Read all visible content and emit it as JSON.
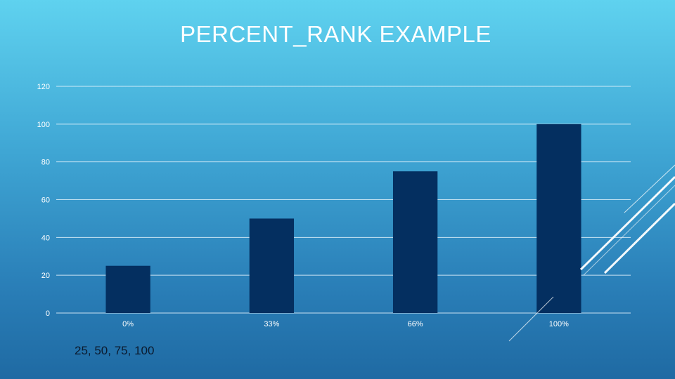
{
  "slide": {
    "title": "PERCENT_RANK EXAMPLE",
    "caption": "25, 50, 75, 100"
  },
  "colors": {
    "bar": "#042f60",
    "grid": "#e6f4fb",
    "axis_text": "#ffffff"
  },
  "chart_data": {
    "type": "bar",
    "title": "",
    "xlabel": "",
    "ylabel": "",
    "categories": [
      "0%",
      "33%",
      "66%",
      "100%"
    ],
    "values": [
      25,
      50,
      75,
      100
    ],
    "ylim": [
      0,
      120
    ],
    "yticks": [
      0,
      20,
      40,
      60,
      80,
      100,
      120
    ],
    "grid": true,
    "legend": "none"
  }
}
